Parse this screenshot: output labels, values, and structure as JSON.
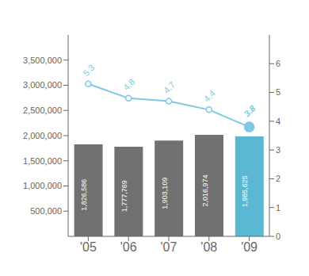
{
  "chart_data": {
    "type": "bar",
    "categories": [
      "'05",
      "'06",
      "'07",
      "'08",
      "'09"
    ],
    "series": [
      {
        "type": "bar",
        "colors": [
          "#717171",
          "#717171",
          "#717171",
          "#717171",
          "#5bb8d4"
        ],
        "values": [
          1826586,
          1777769,
          1903109,
          2016974,
          1985625
        ],
        "value_labels": [
          "1,826,586",
          "1,777,769",
          "1,903,109",
          "2,016,974",
          "1,985,625"
        ],
        "data_labels": true
      },
      {
        "type": "line",
        "axis": "y2",
        "color": "#7ec8e3",
        "marker": "circle",
        "values": [
          5.3,
          4.8,
          4.7,
          4.4,
          3.8
        ],
        "data_labels": true
      }
    ],
    "ylim": [
      0,
      4000000
    ],
    "yticks": [
      {
        "value": 500000,
        "label": "500,000"
      },
      {
        "value": 1000000,
        "label": "1,000,000"
      },
      {
        "value": 1500000,
        "label": "1,500,000"
      },
      {
        "value": 2000000,
        "label": "2,000,000"
      },
      {
        "value": 2500000,
        "label": "2,500,000"
      },
      {
        "value": 3000000,
        "label": "3,000,000"
      },
      {
        "value": 3500000,
        "label": "3,500,000"
      }
    ],
    "y2lim": [
      0,
      7
    ],
    "y2ticks": [
      0,
      1,
      2,
      3,
      4,
      5,
      6
    ],
    "grid": false
  }
}
